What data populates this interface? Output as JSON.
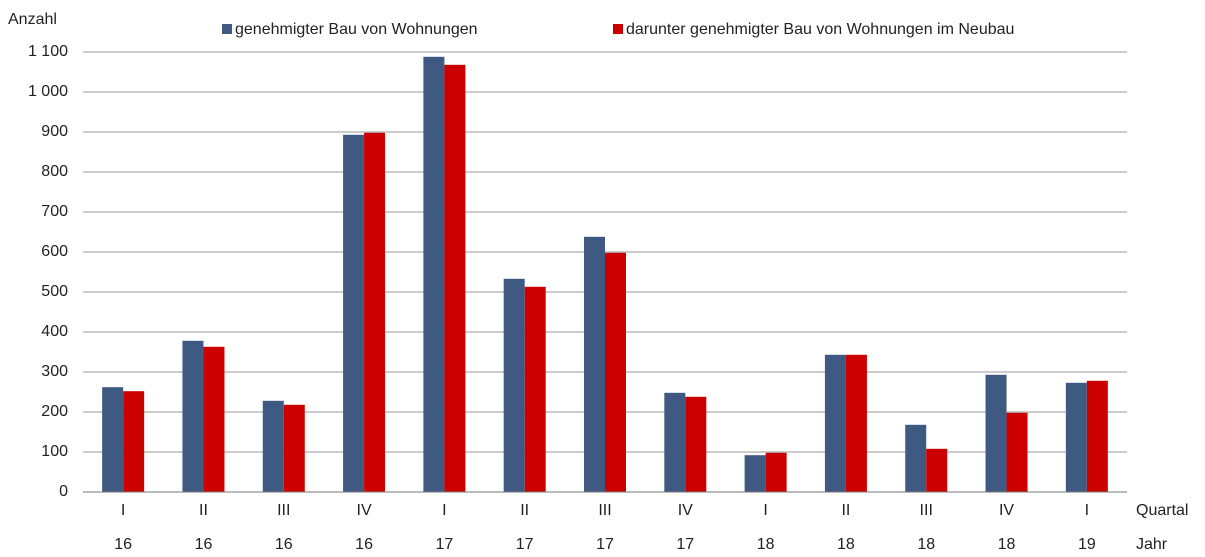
{
  "chart_data": {
    "type": "bar",
    "y_axis_label": "Anzahl",
    "x_axis_label": "Quartal",
    "x2_axis_label": "Jahr",
    "categories": [
      "I",
      "II",
      "III",
      "IV",
      "I",
      "II",
      "III",
      "IV",
      "I",
      "II",
      "III",
      "IV",
      "I"
    ],
    "years": [
      "16",
      "16",
      "16",
      "16",
      "17",
      "17",
      "17",
      "17",
      "18",
      "18",
      "18",
      "18",
      "19"
    ],
    "series": [
      {
        "name": "genehmigter Bau von Wohnungen",
        "color": "#3f5a82",
        "values": [
          262,
          378,
          228,
          893,
          1088,
          533,
          638,
          248,
          92,
          343,
          168,
          293,
          273
        ]
      },
      {
        "name": "darunter genehmigter Bau von Wohnungen im Neubau",
        "color": "#cc0000",
        "values": [
          252,
          363,
          218,
          898,
          1068,
          513,
          598,
          238,
          98,
          343,
          108,
          198,
          278
        ]
      }
    ],
    "ylim": [
      0,
      1100
    ],
    "yticks": [
      0,
      100,
      200,
      300,
      400,
      500,
      600,
      700,
      800,
      900,
      {
        "value": 1000,
        "label": "1 000"
      },
      {
        "value": 1100,
        "label": "1 100"
      }
    ],
    "grid": true
  }
}
